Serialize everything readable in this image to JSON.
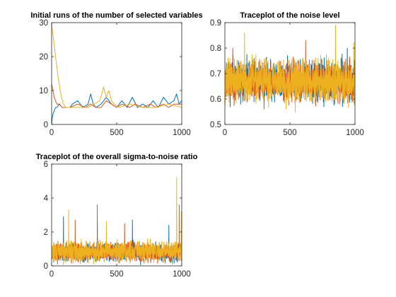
{
  "chart_data": [
    {
      "type": "line",
      "title": "Initial runs of the number of selected variables",
      "xlabel": "",
      "ylabel": "",
      "xlim": [
        0,
        1000
      ],
      "ylim": [
        0,
        30
      ],
      "xticks": [
        0,
        500,
        1000
      ],
      "yticks": [
        0,
        10,
        20,
        30
      ],
      "grid": false,
      "series": [
        {
          "color": "#0072BD",
          "x": [
            0,
            5,
            10,
            20,
            30,
            40,
            60,
            80,
            100,
            140,
            160,
            200,
            240,
            280,
            300,
            320,
            340,
            380,
            420,
            460,
            500,
            540,
            580,
            620,
            660,
            700,
            740,
            780,
            820,
            860,
            900,
            940,
            960,
            980,
            1000
          ],
          "y": [
            0,
            2,
            3,
            4,
            5,
            5,
            6,
            5,
            5,
            5,
            6,
            7,
            5,
            6,
            9,
            6,
            5,
            6,
            8,
            6,
            5,
            7,
            5,
            8,
            5,
            6,
            5,
            7,
            5,
            8,
            6,
            7,
            9,
            6,
            7
          ]
        },
        {
          "color": "#D95319",
          "x": [
            0,
            5,
            10,
            20,
            30,
            40,
            60,
            80,
            100,
            140,
            200,
            260,
            300,
            340,
            380,
            420,
            460,
            500,
            540,
            600,
            640,
            700,
            760,
            800,
            860,
            900,
            940,
            1000
          ],
          "y": [
            12,
            11,
            10,
            8,
            7,
            6,
            6,
            5,
            5,
            5,
            6,
            5,
            6,
            5,
            5,
            7,
            6,
            5,
            6,
            5,
            6,
            5,
            6,
            5,
            6,
            5,
            6,
            6
          ]
        },
        {
          "color": "#EDB120",
          "x": [
            0,
            5,
            15,
            30,
            50,
            70,
            90,
            110,
            200,
            280,
            330,
            370,
            400,
            420,
            440,
            460,
            480,
            520,
            600,
            700,
            800,
            900,
            1000
          ],
          "y": [
            30,
            28,
            25,
            20,
            14,
            9,
            6,
            5,
            5,
            5,
            6,
            7,
            11,
            8,
            10,
            7,
            6,
            5,
            6,
            5,
            5,
            6,
            5
          ]
        }
      ]
    },
    {
      "type": "line",
      "title": "Traceplot of the noise level",
      "xlabel": "",
      "ylabel": "",
      "xlim": [
        0,
        1000
      ],
      "ylim": [
        0.5,
        0.9
      ],
      "xticks": [
        0,
        500,
        1000
      ],
      "yticks": [
        0.5,
        0.6,
        0.7,
        0.8,
        0.9
      ],
      "grid": false,
      "series": [
        {
          "color": "#0072BD",
          "n": 1000,
          "mean": 0.67,
          "amp": 0.05,
          "spikes": [
            [
              120,
              0.58
            ],
            [
              480,
              0.77
            ],
            [
              760,
              0.57
            ],
            [
              940,
              0.8
            ]
          ],
          "seed": 11
        },
        {
          "color": "#D95319",
          "n": 1000,
          "mean": 0.67,
          "amp": 0.05,
          "spikes": [
            [
              60,
              0.8
            ],
            [
              300,
              0.56
            ],
            [
              620,
              0.83
            ],
            [
              880,
              0.58
            ]
          ],
          "seed": 23
        },
        {
          "color": "#EDB120",
          "n": 1000,
          "mean": 0.67,
          "amp": 0.055,
          "spikes": [
            [
              150,
              0.86
            ],
            [
              540,
              0.55
            ],
            [
              850,
              0.89
            ],
            [
              990,
              0.82
            ]
          ],
          "seed": 37
        }
      ]
    },
    {
      "type": "line",
      "title": "Traceplot of the overall sigma-to-noise ratio",
      "xlabel": "",
      "ylabel": "",
      "xlim": [
        0,
        1000
      ],
      "ylim": [
        0,
        6
      ],
      "xticks": [
        0,
        500,
        1000
      ],
      "yticks": [
        0,
        2,
        4,
        6
      ],
      "grid": false,
      "series": [
        {
          "color": "#0072BD",
          "n": 1000,
          "mean": 0.8,
          "amp": 0.35,
          "spikes": [
            [
              90,
              2.9
            ],
            [
              350,
              2.6
            ],
            [
              620,
              2.7
            ],
            [
              900,
              2.4
            ]
          ],
          "seed": 5
        },
        {
          "color": "#D95319",
          "n": 1000,
          "mean": 0.8,
          "amp": 0.35,
          "spikes": [
            [
              180,
              2.7
            ],
            [
              350,
              3.6
            ],
            [
              560,
              2.5
            ],
            [
              980,
              3.6
            ]
          ],
          "seed": 17
        },
        {
          "color": "#EDB120",
          "n": 1000,
          "mean": 0.85,
          "amp": 0.4,
          "spikes": [
            [
              130,
              3.3
            ],
            [
              420,
              2.6
            ],
            [
              960,
              5.2
            ],
            [
              995,
              3.2
            ]
          ],
          "seed": 29
        }
      ]
    }
  ]
}
